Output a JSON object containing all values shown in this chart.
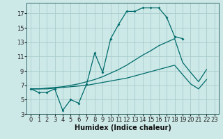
{
  "xlabel": "Humidex (Indice chaleur)",
  "bg_color": "#cce9e8",
  "grid_color": "#aacccc",
  "line_color": "#006b6b",
  "xlim": [
    -0.5,
    23.5
  ],
  "ylim": [
    3,
    18.5
  ],
  "xticks": [
    0,
    1,
    2,
    3,
    4,
    5,
    6,
    7,
    8,
    9,
    10,
    11,
    12,
    13,
    14,
    15,
    16,
    17,
    18,
    19,
    20,
    21,
    22,
    23
  ],
  "yticks": [
    3,
    5,
    7,
    9,
    11,
    13,
    15,
    17
  ],
  "line1_x": [
    0,
    1,
    2,
    3,
    4,
    5,
    6,
    7,
    8,
    9,
    10,
    11,
    12,
    13,
    14,
    15,
    16,
    17,
    18,
    19
  ],
  "line1_y": [
    6.5,
    6.0,
    6.0,
    6.5,
    3.5,
    5.0,
    4.5,
    7.2,
    11.5,
    8.8,
    13.5,
    15.5,
    17.3,
    17.3,
    17.8,
    17.8,
    17.8,
    16.5,
    13.8,
    13.5
  ],
  "line2_x": [
    0,
    1,
    2,
    3,
    4,
    5,
    6,
    7,
    8,
    9,
    10,
    11,
    12,
    13,
    14,
    15,
    16,
    17,
    18,
    19,
    20,
    21,
    22,
    23
  ],
  "line2_y": [
    6.5,
    6.5,
    6.6,
    6.7,
    6.8,
    7.0,
    7.2,
    7.5,
    7.8,
    8.2,
    8.7,
    9.2,
    9.8,
    10.5,
    11.2,
    11.8,
    12.5,
    13.0,
    13.5,
    10.2,
    8.8,
    7.5,
    9.2,
    null
  ],
  "line3_x": [
    0,
    1,
    2,
    3,
    4,
    5,
    6,
    7,
    8,
    9,
    10,
    11,
    12,
    13,
    14,
    15,
    16,
    17,
    18,
    19,
    20,
    21,
    22,
    23
  ],
  "line3_y": [
    6.5,
    6.5,
    6.5,
    6.6,
    6.7,
    6.8,
    6.9,
    7.0,
    7.2,
    7.4,
    7.6,
    7.8,
    8.0,
    8.3,
    8.6,
    8.9,
    9.2,
    9.5,
    9.8,
    8.5,
    7.2,
    6.5,
    7.8,
    null
  ]
}
